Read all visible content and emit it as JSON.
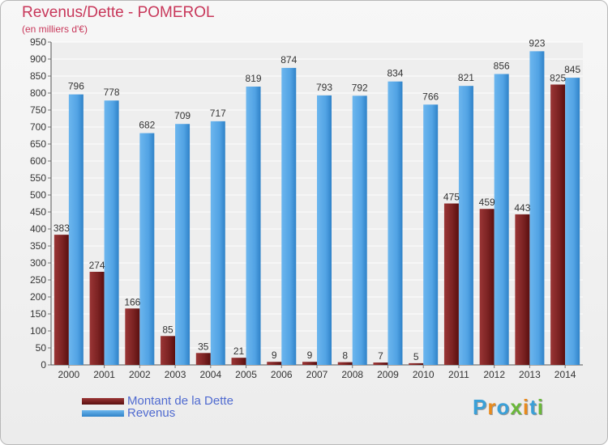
{
  "title": "Revenus/Dette - POMEROL",
  "subtitle": "(en milliers d'€)",
  "colors": {
    "debt": "#8b2a2a",
    "revenue": "#5aa8e6",
    "title": "#c8375a",
    "legend_text": "#4f6ad0"
  },
  "legend": [
    {
      "label": "Montant de la Dette",
      "color": "#7a1f1f"
    },
    {
      "label": "Revenus",
      "color": "#4a9ee0"
    }
  ],
  "logo": {
    "text": "Proxiti",
    "letters": [
      "P",
      "r",
      "o",
      "x",
      "i",
      "t",
      "i"
    ],
    "colors": [
      "#3aa0d8",
      "#e98a1c",
      "#3aa0d8",
      "#6ab83a",
      "#e98a1c",
      "#3aa0d8",
      "#6ab83a"
    ]
  },
  "chart_data": {
    "type": "bar",
    "categories": [
      "2000",
      "2001",
      "2002",
      "2003",
      "2004",
      "2005",
      "2006",
      "2007",
      "2008",
      "2009",
      "2010",
      "2011",
      "2012",
      "2013",
      "2014"
    ],
    "series": [
      {
        "name": "Montant de la Dette",
        "values": [
          383,
          274,
          166,
          85,
          35,
          21,
          9,
          9,
          8,
          7,
          5,
          475,
          459,
          443,
          825
        ]
      },
      {
        "name": "Revenus",
        "values": [
          796,
          778,
          682,
          709,
          717,
          819,
          874,
          793,
          792,
          834,
          766,
          821,
          856,
          923,
          845
        ]
      }
    ],
    "ylim": [
      0,
      950
    ],
    "yticks": [
      0,
      50,
      100,
      150,
      200,
      250,
      300,
      350,
      400,
      450,
      500,
      550,
      600,
      650,
      700,
      750,
      800,
      850,
      900,
      950
    ],
    "grid": true,
    "legend_position": "bottom-left",
    "data_labels": true
  }
}
